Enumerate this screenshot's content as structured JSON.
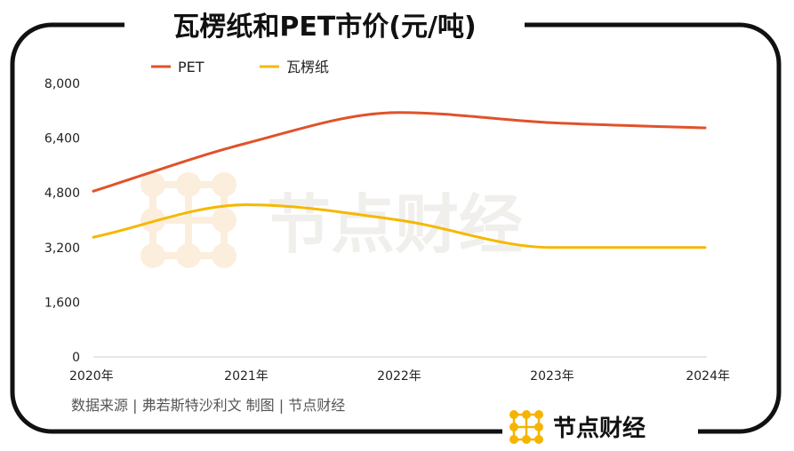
{
  "chart_data": {
    "type": "line",
    "title": "瓦楞纸和PET市价(元/吨)",
    "categories": [
      "2020年",
      "2021年",
      "2022年",
      "2023年",
      "2024年"
    ],
    "series": [
      {
        "name": "PET",
        "color": "#e0522a",
        "values": [
          4850,
          6250,
          7150,
          6850,
          6700
        ]
      },
      {
        "name": "瓦楞纸",
        "color": "#f5b800",
        "values": [
          3500,
          4450,
          4000,
          3200,
          3200
        ]
      }
    ],
    "ylim": [
      0,
      8000
    ],
    "yticks": [
      "0",
      "1,600",
      "3,200",
      "4,800",
      "6,400",
      "8,000"
    ],
    "yticks_values": [
      0,
      1600,
      3200,
      4800,
      6400,
      8000
    ],
    "grid": false,
    "legend": "top-left"
  },
  "source_text": "数据来源 | 弗若斯特沙利文  制图 | 节点财经",
  "brand": {
    "name": "节点财经",
    "icon": "grid-dots-logo-icon",
    "accent": "#f5b400"
  },
  "watermark": {
    "text": "节点财经",
    "icon": "grid-dots-logo-icon"
  }
}
